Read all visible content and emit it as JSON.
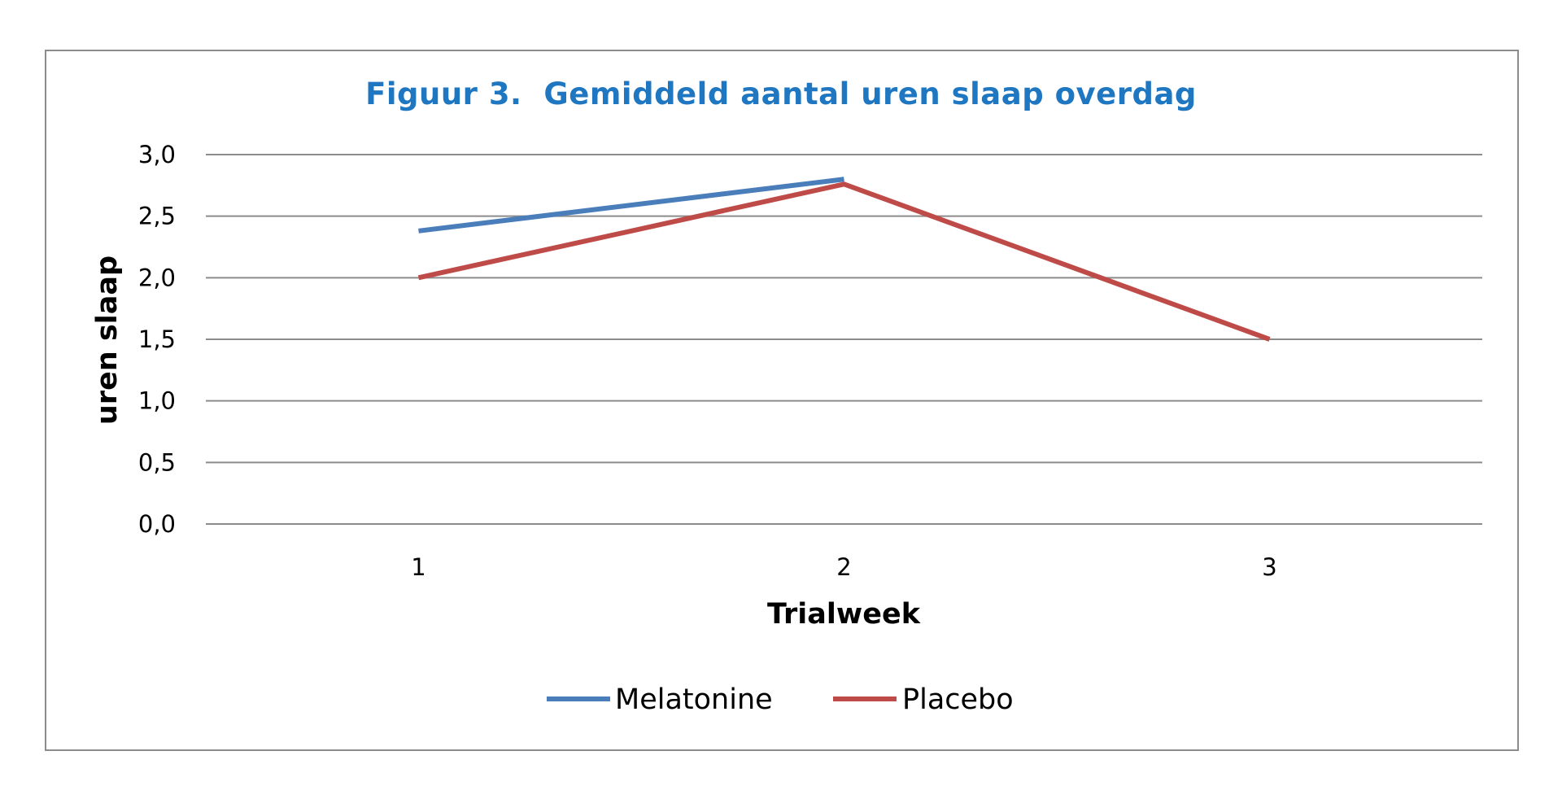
{
  "chart_data": {
    "type": "line",
    "title": "Figuur 3.  Gemiddeld aantal uren slaap overdag",
    "xlabel": "Trialweek",
    "ylabel": "uren slaap",
    "categories": [
      "1",
      "2",
      "3"
    ],
    "y_ticks": [
      "0,0",
      "0,5",
      "1,0",
      "1,5",
      "2,0",
      "2,5",
      "3,0"
    ],
    "ylim": [
      0,
      3.0
    ],
    "grid": true,
    "legend_position": "bottom",
    "series": [
      {
        "name": "Melatonine",
        "color": "#4a7ebb",
        "values": [
          2.38,
          2.8,
          null
        ]
      },
      {
        "name": "Placebo",
        "color": "#be4b48",
        "values": [
          2.0,
          2.76,
          1.5
        ]
      }
    ]
  }
}
